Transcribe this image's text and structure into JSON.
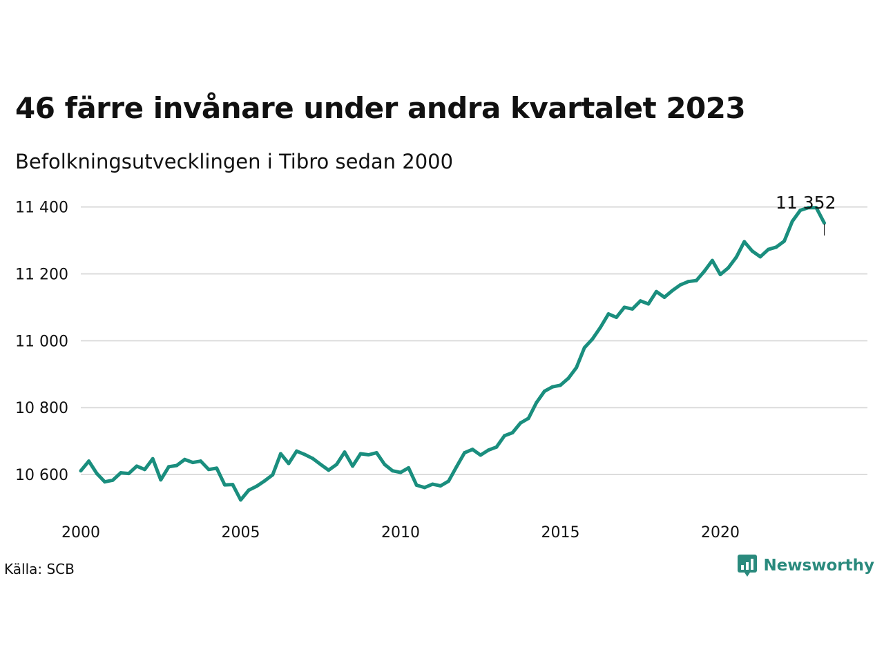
{
  "title": "46 färre invånare under andra kvartalet 2023",
  "subtitle": "Befolkningsutvecklingen i Tibro sedan 2000",
  "source": "Källa: SCB",
  "brand": "Newsworthy",
  "brand_icon": "newsworthy-logo-icon",
  "colors": {
    "line": "#1a8e7e",
    "grid": "#dcdcdc",
    "brand": "#2a8a7d"
  },
  "chart_data": {
    "type": "line",
    "title": "46 färre invånare under andra kvartalet 2023",
    "subtitle": "Befolkningsutvecklingen i Tibro sedan 2000",
    "xlabel": "",
    "ylabel": "",
    "grid": true,
    "legend": "none",
    "xlim": [
      2000,
      2024.6
    ],
    "ylim": [
      10470,
      11420
    ],
    "x_ticks": [
      2000,
      2005,
      2010,
      2015,
      2020
    ],
    "x_tick_labels": [
      "2000",
      "2005",
      "2010",
      "2015",
      "2020"
    ],
    "y_ticks": [
      10600,
      10800,
      11000,
      11200,
      11400
    ],
    "y_tick_labels": [
      "10 600",
      "10 800",
      "11 000",
      "11 200",
      "11 400"
    ],
    "end_label": "11 352",
    "series": [
      {
        "values": [
          [
            2000.0,
            10611
          ],
          [
            2000.25,
            10640
          ],
          [
            2000.5,
            10603
          ],
          [
            2000.75,
            10578
          ],
          [
            2001.0,
            10583
          ],
          [
            2001.25,
            10605
          ],
          [
            2001.5,
            10603
          ],
          [
            2001.75,
            10625
          ],
          [
            2002.0,
            10615
          ],
          [
            2002.25,
            10647
          ],
          [
            2002.5,
            10584
          ],
          [
            2002.75,
            10623
          ],
          [
            2003.0,
            10627
          ],
          [
            2003.25,
            10645
          ],
          [
            2003.5,
            10636
          ],
          [
            2003.75,
            10640
          ],
          [
            2004.0,
            10615
          ],
          [
            2004.25,
            10619
          ],
          [
            2004.5,
            10569
          ],
          [
            2004.75,
            10570
          ],
          [
            2005.0,
            10524
          ],
          [
            2005.25,
            10553
          ],
          [
            2005.5,
            10565
          ],
          [
            2005.75,
            10581
          ],
          [
            2006.0,
            10599
          ],
          [
            2006.25,
            10662
          ],
          [
            2006.5,
            10633
          ],
          [
            2006.75,
            10670
          ],
          [
            2007.0,
            10660
          ],
          [
            2007.25,
            10648
          ],
          [
            2007.5,
            10630
          ],
          [
            2007.75,
            10613
          ],
          [
            2008.0,
            10630
          ],
          [
            2008.25,
            10667
          ],
          [
            2008.5,
            10625
          ],
          [
            2008.75,
            10662
          ],
          [
            2009.0,
            10659
          ],
          [
            2009.25,
            10665
          ],
          [
            2009.5,
            10630
          ],
          [
            2009.75,
            10611
          ],
          [
            2010.0,
            10606
          ],
          [
            2010.25,
            10620
          ],
          [
            2010.5,
            10568
          ],
          [
            2010.75,
            10561
          ],
          [
            2011.0,
            10571
          ],
          [
            2011.25,
            10566
          ],
          [
            2011.5,
            10580
          ],
          [
            2011.75,
            10623
          ],
          [
            2012.0,
            10665
          ],
          [
            2012.25,
            10675
          ],
          [
            2012.5,
            10658
          ],
          [
            2012.75,
            10673
          ],
          [
            2013.0,
            10682
          ],
          [
            2013.25,
            10716
          ],
          [
            2013.5,
            10725
          ],
          [
            2013.75,
            10754
          ],
          [
            2014.0,
            10768
          ],
          [
            2014.25,
            10815
          ],
          [
            2014.5,
            10849
          ],
          [
            2014.75,
            10862
          ],
          [
            2015.0,
            10867
          ],
          [
            2015.25,
            10888
          ],
          [
            2015.5,
            10920
          ],
          [
            2015.75,
            10979
          ],
          [
            2016.0,
            11005
          ],
          [
            2016.25,
            11040
          ],
          [
            2016.5,
            11080
          ],
          [
            2016.75,
            11070
          ],
          [
            2017.0,
            11100
          ],
          [
            2017.25,
            11095
          ],
          [
            2017.5,
            11119
          ],
          [
            2017.75,
            11110
          ],
          [
            2018.0,
            11147
          ],
          [
            2018.25,
            11130
          ],
          [
            2018.5,
            11150
          ],
          [
            2018.75,
            11167
          ],
          [
            2019.0,
            11177
          ],
          [
            2019.25,
            11180
          ],
          [
            2019.5,
            11208
          ],
          [
            2019.75,
            11240
          ],
          [
            2020.0,
            11198
          ],
          [
            2020.25,
            11218
          ],
          [
            2020.5,
            11250
          ],
          [
            2020.75,
            11296
          ],
          [
            2021.0,
            11268
          ],
          [
            2021.25,
            11251
          ],
          [
            2021.5,
            11273
          ],
          [
            2021.75,
            11280
          ],
          [
            2022.0,
            11298
          ],
          [
            2022.25,
            11357
          ],
          [
            2022.5,
            11390
          ],
          [
            2022.75,
            11398
          ],
          [
            2023.0,
            11398
          ],
          [
            2023.25,
            11352
          ]
        ]
      }
    ]
  }
}
